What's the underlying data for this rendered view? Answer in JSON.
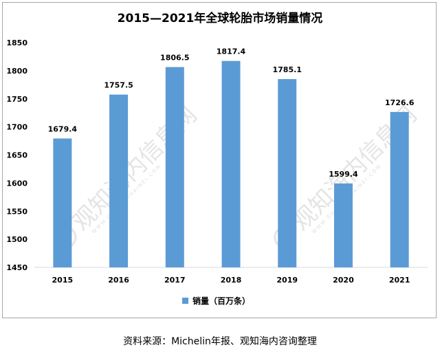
{
  "chart_data": {
    "type": "bar",
    "title": "2015—2021年全球轮胎市场销量情况",
    "categories": [
      "2015",
      "2016",
      "2017",
      "2018",
      "2019",
      "2020",
      "2021"
    ],
    "series": [
      {
        "name": "销量（百万条）",
        "values": [
          1679.4,
          1757.5,
          1806.5,
          1817.4,
          1785.1,
          1599.4,
          1726.6
        ],
        "color": "#5b9bd5"
      }
    ],
    "data_labels": [
      "1679.4",
      "1757.5",
      "1806.5",
      "1817.4",
      "1785.1",
      "1599.4",
      "1726.6"
    ],
    "ylim": [
      1450,
      1850
    ],
    "yticks": [
      "1450",
      "1500",
      "1550",
      "1600",
      "1650",
      "1700",
      "1750",
      "1800",
      "1850"
    ],
    "grid": false,
    "legend": "bottom"
  },
  "watermark": {
    "text": "观知海内信息网",
    "url": "WWW.GUANZHIHAINEI.COM"
  },
  "source": "资料来源：Michelin年报、观知海内咨询整理"
}
